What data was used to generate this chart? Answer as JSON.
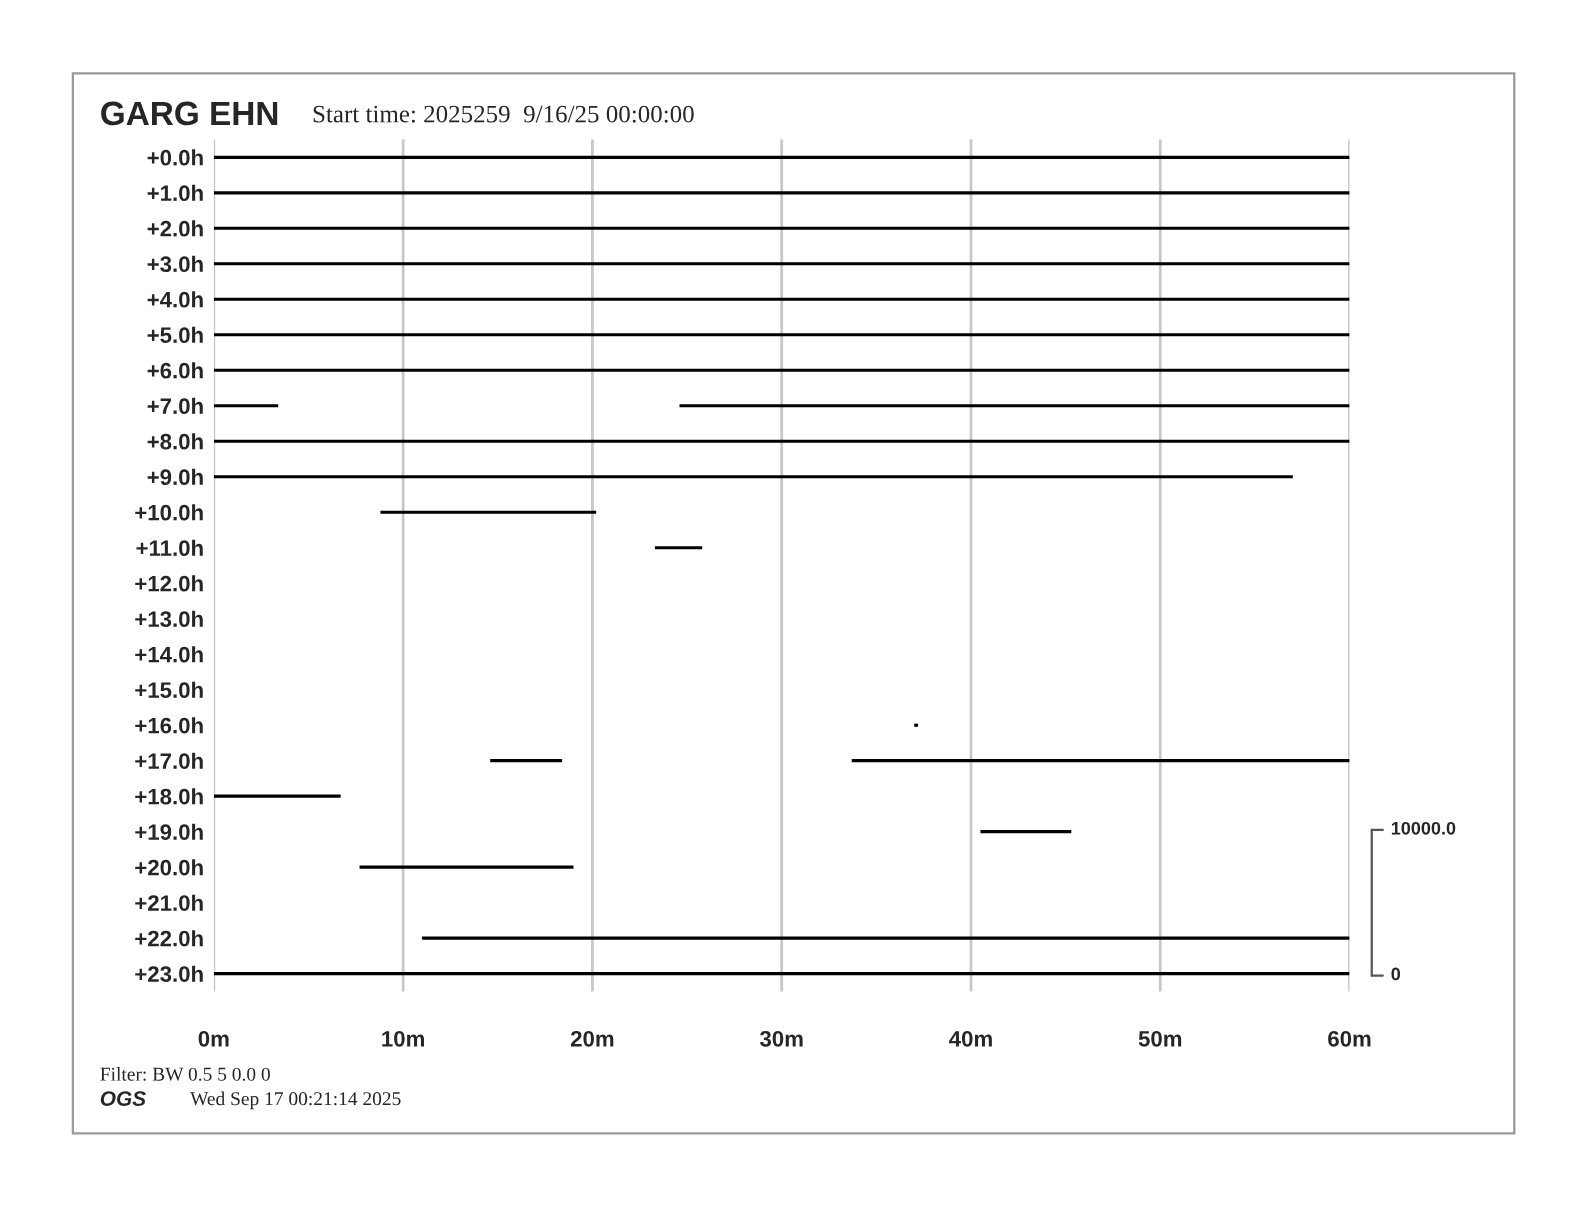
{
  "chart_data": {
    "type": "bar",
    "orientation": "horizontal",
    "title": "GARG EHN",
    "subtitle": "Start time: 2025259  9/16/25 00:00:00",
    "categories": [
      "+0.0h",
      "+1.0h",
      "+2.0h",
      "+3.0h",
      "+4.0h",
      "+5.0h",
      "+6.0h",
      "+7.0h",
      "+8.0h",
      "+9.0h",
      "+10.0h",
      "+11.0h",
      "+12.0h",
      "+13.0h",
      "+14.0h",
      "+15.0h",
      "+16.0h",
      "+17.0h",
      "+18.0h",
      "+19.0h",
      "+20.0h",
      "+21.0h",
      "+22.0h",
      "+23.0h"
    ],
    "series": [
      {
        "color": "#000000",
        "base": [
          0,
          0,
          0,
          0,
          0,
          0,
          0,
          0,
          0,
          0,
          8.8,
          23.3,
          null,
          null,
          null,
          null,
          37.0,
          14.6,
          0,
          40.5,
          7.7,
          null,
          11.0,
          0
        ],
        "values": [
          60,
          60,
          60,
          60,
          60,
          60,
          60,
          3.4,
          60,
          57,
          11.4,
          2.5,
          null,
          null,
          null,
          null,
          0.2,
          3.8,
          6.7,
          4.8,
          11.3,
          null,
          49,
          60
        ]
      },
      {
        "color": "#000000",
        "base": [
          null,
          null,
          null,
          null,
          null,
          null,
          null,
          24.6,
          null,
          null,
          null,
          null,
          null,
          null,
          null,
          null,
          null,
          33.7,
          null,
          null,
          null,
          null,
          null,
          null
        ],
        "values": [
          null,
          null,
          null,
          null,
          null,
          null,
          null,
          35.4,
          null,
          null,
          null,
          null,
          null,
          null,
          null,
          null,
          null,
          26.3,
          null,
          null,
          null,
          null,
          null,
          null
        ]
      }
    ],
    "xlim": [
      0,
      60
    ],
    "xticks": [
      {
        "value": 0,
        "label": "0m"
      },
      {
        "value": 10,
        "label": "10m"
      },
      {
        "value": 20,
        "label": "20m"
      },
      {
        "value": 30,
        "label": "30m"
      },
      {
        "value": 40,
        "label": "40m"
      },
      {
        "value": 50,
        "label": "50m"
      },
      {
        "value": 60,
        "label": "60m"
      }
    ],
    "grid": "x",
    "legend": false,
    "annotations": [
      "10000.0",
      "0",
      "Filter: BW 0.5 5 0.0 0",
      "OGS",
      "Wed Sep 17 00:21:14 2025"
    ]
  }
}
